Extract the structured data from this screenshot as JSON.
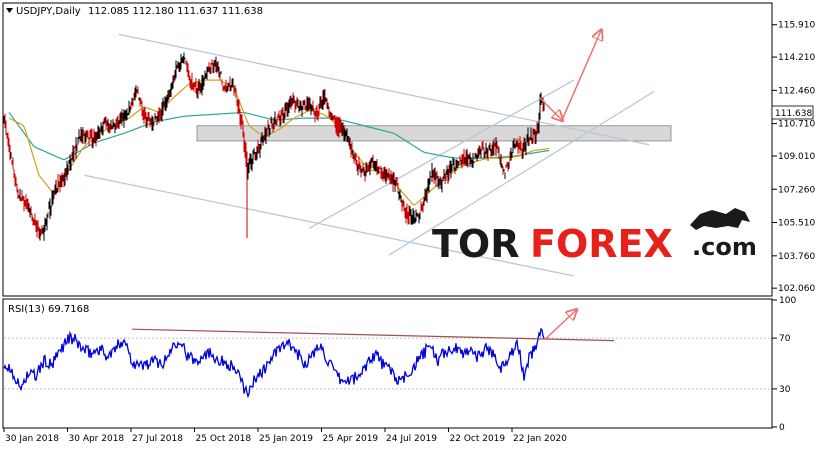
{
  "header": {
    "symbol": "USDJPY,Daily",
    "ohlc": "112.085 112.180 111.637 111.638"
  },
  "price_axis": {
    "ticks": [
      "115.910",
      "114.210",
      "112.460",
      "110.710",
      "109.010",
      "107.260",
      "105.510",
      "103.760",
      "102.060"
    ],
    "tick_values": [
      115.91,
      114.21,
      112.46,
      110.71,
      109.01,
      107.26,
      105.51,
      103.76,
      102.06
    ],
    "current_price_label": "111.638",
    "current_price": 111.638
  },
  "rsi_panel": {
    "title": "RSI(13) 69.7168",
    "ticks": [
      "100",
      "70",
      "30",
      "0"
    ],
    "tick_values": [
      100,
      70,
      30,
      0
    ]
  },
  "x_axis": {
    "labels": [
      "30 Jan 2018",
      "30 Apr 2018",
      "27 Jul 2018",
      "25 Oct 2018",
      "25 Jan 2019",
      "25 Apr 2019",
      "24 Jul 2019",
      "22 Oct 2019",
      "22 Jan 2020"
    ]
  },
  "watermark": {
    "part1": "TOR",
    "part2": "FOREX",
    "part3": ".com"
  },
  "colors": {
    "bull_candle": "#000000",
    "bear_candle": "#cc0000",
    "ma_fast": "#d4a017",
    "ma_slow": "#2aa89a",
    "rsi_line": "#0000dd",
    "channel_lines": "#b8c8d8",
    "resistance_zone": "#d8d8d8",
    "arrows": "#f07070",
    "rsi_trend": "#a0524d",
    "watermark_dark": "#1a1a1a",
    "watermark_red": "#e8201a"
  },
  "chart_data": {
    "type": "candlestick",
    "title": "USDJPY,Daily",
    "ylim": [
      101.7,
      117.0
    ],
    "price_anchors": [
      [
        0,
        110.9
      ],
      [
        6,
        109.1
      ],
      [
        14,
        107.0
      ],
      [
        22,
        106.6
      ],
      [
        30,
        105.5
      ],
      [
        38,
        104.8
      ],
      [
        45,
        106.2
      ],
      [
        52,
        107.4
      ],
      [
        60,
        107.8
      ],
      [
        68,
        109.0
      ],
      [
        76,
        110.1
      ],
      [
        84,
        110.0
      ],
      [
        92,
        109.9
      ],
      [
        100,
        110.8
      ],
      [
        108,
        110.5
      ],
      [
        116,
        110.9
      ],
      [
        124,
        111.3
      ],
      [
        132,
        112.6
      ],
      [
        140,
        111.1
      ],
      [
        148,
        110.7
      ],
      [
        156,
        111.2
      ],
      [
        164,
        112.1
      ],
      [
        172,
        113.6
      ],
      [
        180,
        114.3
      ],
      [
        188,
        112.7
      ],
      [
        196,
        112.5
      ],
      [
        204,
        113.7
      ],
      [
        212,
        113.9
      ],
      [
        220,
        112.6
      ],
      [
        228,
        112.9
      ],
      [
        234,
        111.7
      ],
      [
        238,
        110.5
      ],
      [
        243,
        108.3
      ],
      [
        248,
        108.8
      ],
      [
        256,
        109.6
      ],
      [
        264,
        110.5
      ],
      [
        272,
        110.9
      ],
      [
        280,
        111.2
      ],
      [
        288,
        111.9
      ],
      [
        296,
        111.5
      ],
      [
        304,
        111.8
      ],
      [
        312,
        111.2
      ],
      [
        320,
        112.1
      ],
      [
        328,
        111.0
      ],
      [
        336,
        110.4
      ],
      [
        344,
        109.8
      ],
      [
        352,
        108.6
      ],
      [
        360,
        108.1
      ],
      [
        368,
        108.7
      ],
      [
        376,
        108.2
      ],
      [
        384,
        107.9
      ],
      [
        392,
        107.5
      ],
      [
        400,
        106.1
      ],
      [
        408,
        105.7
      ],
      [
        414,
        105.9
      ],
      [
        420,
        106.7
      ],
      [
        428,
        108.1
      ],
      [
        436,
        107.5
      ],
      [
        444,
        108.2
      ],
      [
        452,
        108.6
      ],
      [
        460,
        108.9
      ],
      [
        468,
        108.7
      ],
      [
        476,
        109.4
      ],
      [
        484,
        109.2
      ],
      [
        492,
        109.6
      ],
      [
        500,
        108.1
      ],
      [
        506,
        109.1
      ],
      [
        512,
        109.8
      ],
      [
        518,
        109.3
      ],
      [
        524,
        109.9
      ],
      [
        530,
        110.1
      ],
      [
        534,
        110.4
      ],
      [
        536,
        112.0
      ],
      [
        540,
        111.64
      ]
    ],
    "ma_fast": [
      [
        5,
        111.0
      ],
      [
        20,
        110.6
      ],
      [
        35,
        108.0
      ],
      [
        50,
        107.0
      ],
      [
        65,
        108.3
      ],
      [
        80,
        109.5
      ],
      [
        95,
        110.2
      ],
      [
        110,
        110.6
      ],
      [
        125,
        111.0
      ],
      [
        140,
        111.6
      ],
      [
        155,
        111.3
      ],
      [
        170,
        112.1
      ],
      [
        185,
        112.8
      ],
      [
        200,
        113.0
      ],
      [
        215,
        113.0
      ],
      [
        230,
        112.6
      ],
      [
        245,
        110.6
      ],
      [
        260,
        110.0
      ],
      [
        275,
        110.4
      ],
      [
        290,
        111.0
      ],
      [
        305,
        111.4
      ],
      [
        320,
        111.2
      ],
      [
        335,
        110.6
      ],
      [
        350,
        109.2
      ],
      [
        365,
        108.3
      ],
      [
        380,
        108.1
      ],
      [
        395,
        107.3
      ],
      [
        410,
        106.4
      ],
      [
        425,
        107.1
      ],
      [
        440,
        107.8
      ],
      [
        455,
        108.4
      ],
      [
        470,
        108.7
      ],
      [
        485,
        108.9
      ],
      [
        500,
        108.9
      ],
      [
        515,
        109.0
      ],
      [
        530,
        109.3
      ],
      [
        545,
        109.4
      ]
    ],
    "ma_slow": [
      [
        5,
        111.3
      ],
      [
        30,
        109.5
      ],
      [
        60,
        108.8
      ],
      [
        90,
        109.7
      ],
      [
        120,
        110.2
      ],
      [
        150,
        110.8
      ],
      [
        180,
        111.1
      ],
      [
        210,
        111.2
      ],
      [
        240,
        111.3
      ],
      [
        270,
        110.9
      ],
      [
        300,
        111.0
      ],
      [
        330,
        111.0
      ],
      [
        360,
        110.6
      ],
      [
        390,
        110.2
      ],
      [
        420,
        109.2
      ],
      [
        450,
        108.9
      ],
      [
        480,
        108.9
      ],
      [
        510,
        109.0
      ],
      [
        545,
        109.3
      ]
    ],
    "channel_lines": [
      {
        "from": [
          115,
          115.4
        ],
        "to": [
          645,
          109.6
        ]
      },
      {
        "from": [
          80,
          108.0
        ],
        "to": [
          570,
          102.7
        ]
      },
      {
        "from": [
          305,
          105.2
        ],
        "to": [
          570,
          113.0
        ]
      },
      {
        "from": [
          385,
          103.8
        ],
        "to": [
          650,
          112.4
        ]
      }
    ],
    "resistance_zone": {
      "x": [
        193,
        667
      ],
      "y": [
        109.8,
        110.6
      ]
    },
    "arrows": [
      {
        "from": [
          535,
          112.1
        ],
        "to": [
          558,
          110.9
        ]
      },
      {
        "from": [
          558,
          110.9
        ],
        "to": [
          597,
          115.6
        ]
      }
    ],
    "rsi": {
      "ylim": [
        0,
        100
      ],
      "anchors": [
        [
          0,
          48
        ],
        [
          8,
          45
        ],
        [
          16,
          30
        ],
        [
          24,
          42
        ],
        [
          32,
          40
        ],
        [
          40,
          52
        ],
        [
          48,
          48
        ],
        [
          56,
          60
        ],
        [
          64,
          70
        ],
        [
          72,
          68
        ],
        [
          80,
          60
        ],
        [
          88,
          58
        ],
        [
          96,
          62
        ],
        [
          104,
          55
        ],
        [
          112,
          62
        ],
        [
          120,
          70
        ],
        [
          128,
          52
        ],
        [
          136,
          48
        ],
        [
          144,
          50
        ],
        [
          152,
          52
        ],
        [
          160,
          50
        ],
        [
          168,
          63
        ],
        [
          176,
          70
        ],
        [
          184,
          55
        ],
        [
          192,
          52
        ],
        [
          200,
          58
        ],
        [
          208,
          58
        ],
        [
          216,
          52
        ],
        [
          224,
          50
        ],
        [
          232,
          45
        ],
        [
          240,
          30
        ],
        [
          246,
          28
        ],
        [
          252,
          40
        ],
        [
          260,
          45
        ],
        [
          268,
          55
        ],
        [
          276,
          62
        ],
        [
          284,
          65
        ],
        [
          292,
          60
        ],
        [
          300,
          50
        ],
        [
          308,
          55
        ],
        [
          316,
          65
        ],
        [
          324,
          52
        ],
        [
          332,
          40
        ],
        [
          340,
          35
        ],
        [
          348,
          38
        ],
        [
          356,
          40
        ],
        [
          364,
          52
        ],
        [
          372,
          58
        ],
        [
          380,
          48
        ],
        [
          388,
          44
        ],
        [
          396,
          34
        ],
        [
          402,
          40
        ],
        [
          410,
          48
        ],
        [
          418,
          56
        ],
        [
          426,
          64
        ],
        [
          434,
          52
        ],
        [
          442,
          60
        ],
        [
          450,
          62
        ],
        [
          458,
          58
        ],
        [
          466,
          62
        ],
        [
          474,
          55
        ],
        [
          482,
          62
        ],
        [
          490,
          58
        ],
        [
          498,
          46
        ],
        [
          506,
          58
        ],
        [
          514,
          64
        ],
        [
          520,
          40
        ],
        [
          526,
          56
        ],
        [
          532,
          64
        ],
        [
          536,
          76
        ],
        [
          540,
          69.7
        ]
      ],
      "trendline": {
        "from": [
          128,
          77
        ],
        "to": [
          610,
          68
        ]
      },
      "arrow": {
        "from": [
          541,
          69
        ],
        "to": [
          572,
          92
        ]
      }
    }
  }
}
